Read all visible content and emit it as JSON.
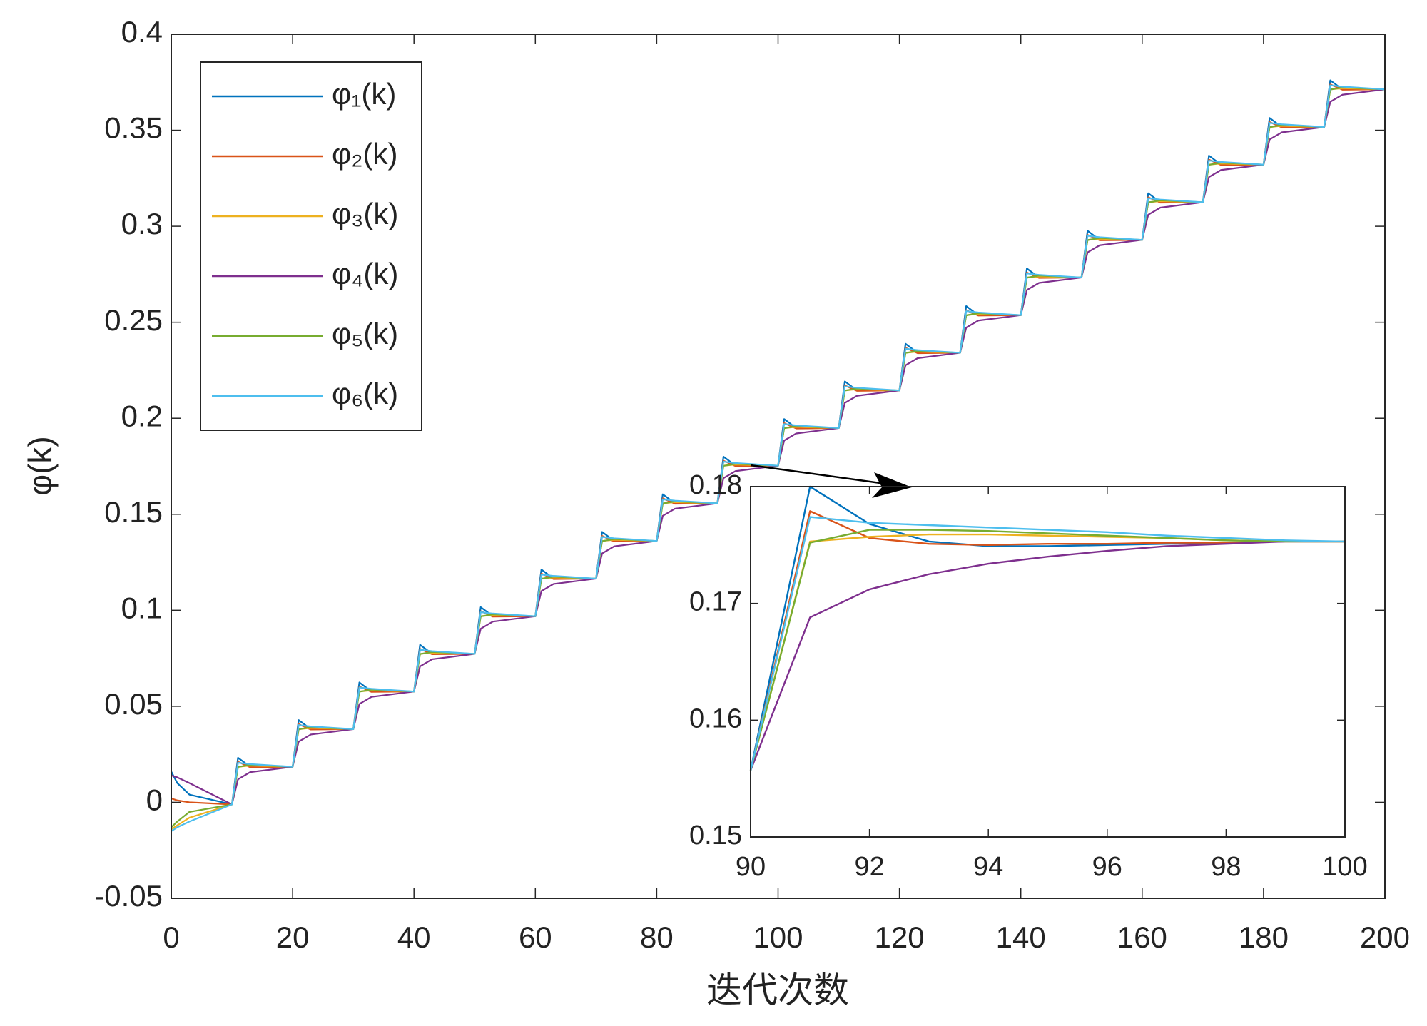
{
  "chart_data": [
    {
      "type": "line",
      "x_label": "迭代次数",
      "y_label": "φ(k)",
      "xlim": [
        0,
        200
      ],
      "xticks": [
        0,
        20,
        40,
        60,
        80,
        100,
        120,
        140,
        160,
        180,
        200
      ],
      "ylim": [
        -0.05,
        0.4
      ],
      "yticks": [
        -0.05,
        0,
        0.05,
        0.1,
        0.15,
        0.2,
        0.25,
        0.3,
        0.35,
        0.4
      ],
      "grid": false,
      "legend": "upper left",
      "x": [
        0,
        1,
        3,
        10,
        11,
        13,
        20,
        21,
        23,
        30,
        31,
        33,
        40,
        41,
        43,
        50,
        51,
        53,
        60,
        61,
        63,
        70,
        71,
        73,
        80,
        81,
        83,
        90,
        91,
        93,
        100,
        101,
        103,
        110,
        111,
        113,
        120,
        121,
        123,
        130,
        131,
        133,
        140,
        141,
        143,
        150,
        151,
        153,
        160,
        161,
        163,
        170,
        171,
        173,
        180,
        181,
        183,
        190,
        191,
        193,
        200
      ],
      "series": [
        {
          "name": "φ₁(k)",
          "color": "#0072BD",
          "values": [
            0.016,
            0.01,
            0.004,
            -0.0011,
            0.0232,
            0.0185,
            0.0185,
            0.0428,
            0.0381,
            0.0381,
            0.0624,
            0.0577,
            0.0577,
            0.082,
            0.0773,
            0.0773,
            0.1016,
            0.0969,
            0.0969,
            0.1212,
            0.1165,
            0.1165,
            0.1408,
            0.1361,
            0.1361,
            0.1604,
            0.1557,
            0.1557,
            0.18,
            0.1753,
            0.1753,
            0.1996,
            0.1949,
            0.1949,
            0.2192,
            0.2145,
            0.2145,
            0.2388,
            0.2341,
            0.2341,
            0.2584,
            0.2537,
            0.2537,
            0.278,
            0.2733,
            0.2733,
            0.2976,
            0.2929,
            0.2929,
            0.3172,
            0.3125,
            0.3125,
            0.3368,
            0.3321,
            0.3321,
            0.3564,
            0.3517,
            0.3517,
            0.376,
            0.3713,
            0.3713
          ]
        },
        {
          "name": "φ₂(k)",
          "color": "#D95319",
          "values": [
            0.002,
            0.001,
            0.0,
            -0.0011,
            0.0211,
            0.0183,
            0.0185,
            0.0407,
            0.0379,
            0.0381,
            0.0603,
            0.0575,
            0.0577,
            0.0799,
            0.0771,
            0.0773,
            0.0995,
            0.0967,
            0.0969,
            0.1191,
            0.1163,
            0.1165,
            0.1387,
            0.1359,
            0.1361,
            0.1583,
            0.1555,
            0.1557,
            0.1779,
            0.1751,
            0.1753,
            0.1975,
            0.1947,
            0.1949,
            0.2171,
            0.2143,
            0.2145,
            0.2367,
            0.2339,
            0.2341,
            0.2563,
            0.2535,
            0.2537,
            0.2759,
            0.2731,
            0.2733,
            0.2955,
            0.2927,
            0.2929,
            0.3151,
            0.3123,
            0.3125,
            0.3347,
            0.3319,
            0.3321,
            0.3543,
            0.3515,
            0.3517,
            0.3739,
            0.3711,
            0.3713
          ]
        },
        {
          "name": "φ₃(k)",
          "color": "#EDB120",
          "values": [
            -0.014,
            -0.012,
            -0.008,
            -0.0011,
            0.0185,
            0.0191,
            0.0185,
            0.0381,
            0.0387,
            0.0381,
            0.0577,
            0.0583,
            0.0577,
            0.0773,
            0.0779,
            0.0773,
            0.0969,
            0.0975,
            0.0969,
            0.1165,
            0.1171,
            0.1165,
            0.1361,
            0.1367,
            0.1361,
            0.1557,
            0.1563,
            0.1557,
            0.1753,
            0.1759,
            0.1753,
            0.1949,
            0.1955,
            0.1949,
            0.2145,
            0.2151,
            0.2145,
            0.2341,
            0.2347,
            0.2341,
            0.2537,
            0.2543,
            0.2537,
            0.2733,
            0.2739,
            0.2733,
            0.2929,
            0.2935,
            0.2929,
            0.3125,
            0.3131,
            0.3125,
            0.3321,
            0.3327,
            0.3321,
            0.3517,
            0.3523,
            0.3517,
            0.3713,
            0.3719,
            0.3713
          ]
        },
        {
          "name": "φ₄(k)",
          "color": "#7E2F8E",
          "values": [
            0.014,
            0.013,
            0.01,
            -0.0011,
            0.012,
            0.0157,
            0.0185,
            0.0316,
            0.0353,
            0.0381,
            0.0512,
            0.0549,
            0.0577,
            0.0708,
            0.0745,
            0.0773,
            0.0904,
            0.0941,
            0.0969,
            0.11,
            0.1137,
            0.1165,
            0.1296,
            0.1333,
            0.1361,
            0.1492,
            0.1529,
            0.1557,
            0.1688,
            0.1725,
            0.1753,
            0.1884,
            0.1921,
            0.1949,
            0.208,
            0.2117,
            0.2145,
            0.2276,
            0.2313,
            0.2341,
            0.2472,
            0.2509,
            0.2537,
            0.2668,
            0.2705,
            0.2733,
            0.2864,
            0.2901,
            0.2929,
            0.306,
            0.3097,
            0.3125,
            0.3256,
            0.3293,
            0.3321,
            0.3452,
            0.3489,
            0.3517,
            0.3648,
            0.3685,
            0.3713
          ]
        },
        {
          "name": "φ₅(k)",
          "color": "#77AC30",
          "values": [
            -0.013,
            -0.01,
            -0.005,
            -0.0011,
            0.0184,
            0.0195,
            0.0185,
            0.038,
            0.0391,
            0.0381,
            0.0576,
            0.0587,
            0.0577,
            0.0772,
            0.0783,
            0.0773,
            0.0968,
            0.0979,
            0.0969,
            0.1164,
            0.1175,
            0.1165,
            0.136,
            0.1371,
            0.1361,
            0.1556,
            0.1567,
            0.1557,
            0.1752,
            0.1763,
            0.1753,
            0.1948,
            0.1959,
            0.1949,
            0.2144,
            0.2155,
            0.2145,
            0.234,
            0.2351,
            0.2341,
            0.2536,
            0.2547,
            0.2537,
            0.2732,
            0.2743,
            0.2733,
            0.2928,
            0.2939,
            0.2929,
            0.3124,
            0.3135,
            0.3125,
            0.332,
            0.3331,
            0.3321,
            0.3516,
            0.3527,
            0.3517,
            0.3712,
            0.3723,
            0.3713
          ]
        },
        {
          "name": "φ₆(k)",
          "color": "#4DBEEE",
          "values": [
            -0.015,
            -0.013,
            -0.01,
            -0.0011,
            0.0206,
            0.0199,
            0.0185,
            0.0402,
            0.0395,
            0.0381,
            0.0598,
            0.0591,
            0.0577,
            0.0794,
            0.0787,
            0.0773,
            0.099,
            0.0983,
            0.0969,
            0.1186,
            0.1179,
            0.1165,
            0.1382,
            0.1375,
            0.1361,
            0.1578,
            0.1571,
            0.1557,
            0.1774,
            0.1767,
            0.1753,
            0.197,
            0.1963,
            0.1949,
            0.2166,
            0.2159,
            0.2145,
            0.2362,
            0.2355,
            0.2341,
            0.2558,
            0.2551,
            0.2537,
            0.2754,
            0.2747,
            0.2733,
            0.295,
            0.2943,
            0.2929,
            0.3146,
            0.3139,
            0.3125,
            0.3342,
            0.3335,
            0.3321,
            0.3538,
            0.3531,
            0.3517,
            0.3734,
            0.3727,
            0.3713
          ]
        }
      ]
    },
    {
      "type": "line",
      "xlim": [
        90,
        100
      ],
      "xticks": [
        90,
        92,
        94,
        96,
        98,
        100
      ],
      "ylim": [
        0.15,
        0.18
      ],
      "yticks": [
        0.15,
        0.16,
        0.17,
        0.18
      ],
      "grid": false,
      "x": [
        90,
        91,
        92,
        93,
        94,
        95,
        96,
        97,
        98,
        99,
        100
      ],
      "series": [
        {
          "color": "#0072BD",
          "values": [
            0.1557,
            0.18,
            0.1768,
            0.1753,
            0.1749,
            0.1749,
            0.175,
            0.1751,
            0.1752,
            0.1753,
            0.1753
          ]
        },
        {
          "color": "#D95319",
          "values": [
            0.1557,
            0.1779,
            0.1756,
            0.1751,
            0.175,
            0.1751,
            0.1751,
            0.1752,
            0.1752,
            0.1753,
            0.1753
          ]
        },
        {
          "color": "#EDB120",
          "values": [
            0.1557,
            0.1753,
            0.1757,
            0.1759,
            0.1759,
            0.1758,
            0.1757,
            0.1756,
            0.1754,
            0.1753,
            0.1753
          ]
        },
        {
          "color": "#7E2F8E",
          "values": [
            0.1557,
            0.1688,
            0.1712,
            0.1725,
            0.1734,
            0.174,
            0.1745,
            0.1749,
            0.1751,
            0.1753,
            0.1753
          ]
        },
        {
          "color": "#77AC30",
          "values": [
            0.1557,
            0.1752,
            0.1763,
            0.1763,
            0.1762,
            0.176,
            0.1758,
            0.1756,
            0.1754,
            0.1753,
            0.1753
          ]
        },
        {
          "color": "#4DBEEE",
          "values": [
            0.1557,
            0.1774,
            0.1769,
            0.1767,
            0.1765,
            0.1763,
            0.1761,
            0.1758,
            0.1756,
            0.1754,
            0.1753
          ]
        }
      ]
    }
  ]
}
